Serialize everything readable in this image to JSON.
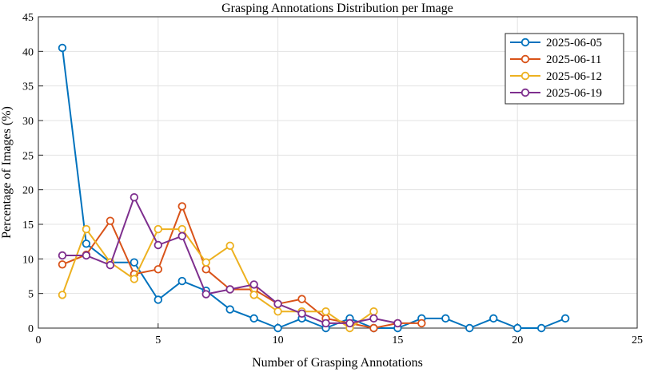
{
  "chart_data": {
    "type": "line",
    "title": "Grasping Annotations Distribution per Image",
    "xlabel": "Number of Grasping Annotations",
    "ylabel": "Percentage of Images (%)",
    "xlim": [
      0,
      25
    ],
    "ylim": [
      0,
      45
    ],
    "xticks": [
      0,
      5,
      10,
      15,
      20,
      25
    ],
    "yticks": [
      0,
      5,
      10,
      15,
      20,
      25,
      30,
      35,
      40,
      45
    ],
    "grid": true,
    "legend_position": "top-right",
    "series": [
      {
        "name": "2025-06-05",
        "color": "#0072BD",
        "x": [
          1,
          2,
          3,
          4,
          5,
          6,
          7,
          8,
          9,
          10,
          11,
          12,
          13,
          14,
          15,
          16,
          17,
          18,
          19,
          20,
          21,
          22
        ],
        "y": [
          40.5,
          12.2,
          9.5,
          9.5,
          4.1,
          6.8,
          5.4,
          2.7,
          1.4,
          0,
          1.4,
          0,
          1.4,
          0,
          0,
          1.4,
          1.4,
          0,
          1.4,
          0,
          0,
          1.4
        ]
      },
      {
        "name": "2025-06-11",
        "color": "#D95319",
        "x": [
          1,
          2,
          3,
          4,
          5,
          6,
          7,
          8,
          9,
          10,
          11,
          12,
          13,
          14,
          15,
          16
        ],
        "y": [
          9.2,
          10.6,
          15.5,
          7.8,
          8.5,
          17.6,
          8.5,
          5.6,
          5.6,
          3.5,
          4.2,
          1.4,
          0.7,
          0,
          0.7,
          0.7
        ]
      },
      {
        "name": "2025-06-12",
        "color": "#EDB120",
        "x": [
          1,
          2,
          3,
          4,
          5,
          6,
          7,
          8,
          9,
          10,
          11,
          12,
          13,
          14
        ],
        "y": [
          4.8,
          14.3,
          9.5,
          7.1,
          14.3,
          14.3,
          9.5,
          11.9,
          4.8,
          2.4,
          2.4,
          2.4,
          0,
          2.4
        ]
      },
      {
        "name": "2025-06-19",
        "color": "#7E2F8E",
        "x": [
          1,
          2,
          3,
          4,
          5,
          6,
          7,
          8,
          9,
          10,
          11,
          12,
          13,
          14,
          15
        ],
        "y": [
          10.5,
          10.5,
          9.1,
          18.9,
          12.0,
          13.3,
          4.9,
          5.6,
          6.3,
          3.5,
          2.1,
          0.7,
          0.7,
          1.4,
          0.7
        ]
      }
    ]
  }
}
